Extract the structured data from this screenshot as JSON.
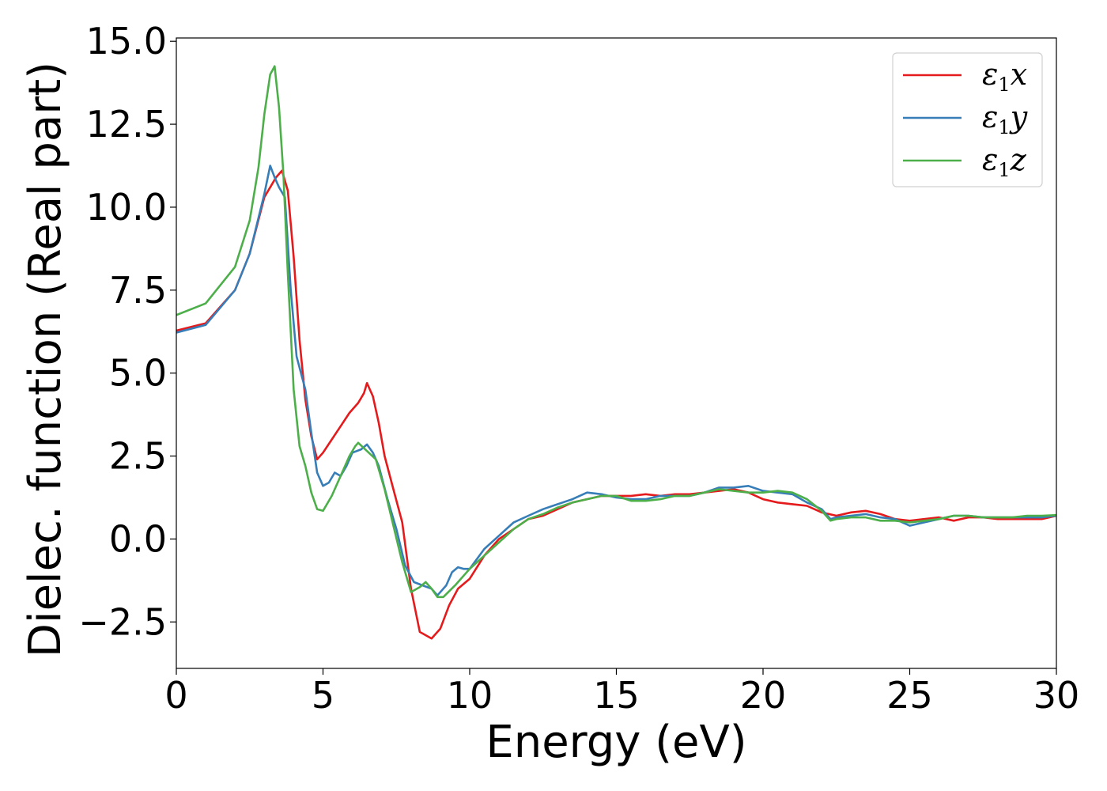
{
  "chart_data": {
    "type": "line",
    "xlabel": "Energy (eV)",
    "ylabel": "Dielec. function (Real part)",
    "xlim": [
      0,
      30
    ],
    "ylim": [
      -3.9,
      15.1
    ],
    "xticks": [
      0,
      5,
      10,
      15,
      20,
      25,
      30
    ],
    "xtick_labels": [
      "0",
      "5",
      "10",
      "15",
      "20",
      "25",
      "30"
    ],
    "yticks": [
      -2.5,
      0.0,
      2.5,
      5.0,
      7.5,
      10.0,
      12.5,
      15.0
    ],
    "ytick_labels": [
      "−2.5",
      "0.0",
      "2.5",
      "5.0",
      "7.5",
      "10.0",
      "12.5",
      "15.0"
    ],
    "grid": false,
    "legend_position": "top-right",
    "series": [
      {
        "name": "ε1x",
        "legend": {
          "base": "ε",
          "sub": "1",
          "tail": "x"
        },
        "color": "#e41a1c",
        "points": [
          [
            0,
            6.28
          ],
          [
            1,
            6.5
          ],
          [
            2,
            7.5
          ],
          [
            2.5,
            8.6
          ],
          [
            3,
            10.3
          ],
          [
            3.2,
            10.6
          ],
          [
            3.4,
            10.9
          ],
          [
            3.6,
            11.1
          ],
          [
            3.8,
            10.5
          ],
          [
            4,
            8.5
          ],
          [
            4.2,
            6.0
          ],
          [
            4.4,
            4.2
          ],
          [
            4.6,
            3.1
          ],
          [
            4.8,
            2.4
          ],
          [
            5,
            2.6
          ],
          [
            5.3,
            3.0
          ],
          [
            5.6,
            3.4
          ],
          [
            5.9,
            3.8
          ],
          [
            6.2,
            4.1
          ],
          [
            6.4,
            4.4
          ],
          [
            6.5,
            4.7
          ],
          [
            6.7,
            4.3
          ],
          [
            6.9,
            3.5
          ],
          [
            7.1,
            2.5
          ],
          [
            7.4,
            1.5
          ],
          [
            7.7,
            0.5
          ],
          [
            8,
            -1.5
          ],
          [
            8.3,
            -2.8
          ],
          [
            8.7,
            -3.0
          ],
          [
            9,
            -2.7
          ],
          [
            9.3,
            -2.0
          ],
          [
            9.6,
            -1.5
          ],
          [
            10,
            -1.2
          ],
          [
            10.5,
            -0.5
          ],
          [
            11,
            0.0
          ],
          [
            11.5,
            0.3
          ],
          [
            12,
            0.6
          ],
          [
            12.5,
            0.7
          ],
          [
            13,
            0.9
          ],
          [
            13.5,
            1.1
          ],
          [
            14,
            1.2
          ],
          [
            14.5,
            1.3
          ],
          [
            15,
            1.3
          ],
          [
            15.5,
            1.3
          ],
          [
            16,
            1.35
          ],
          [
            16.5,
            1.3
          ],
          [
            17,
            1.35
          ],
          [
            17.5,
            1.35
          ],
          [
            18,
            1.4
          ],
          [
            18.5,
            1.45
          ],
          [
            19,
            1.5
          ],
          [
            19.5,
            1.4
          ],
          [
            20,
            1.2
          ],
          [
            20.5,
            1.1
          ],
          [
            21,
            1.05
          ],
          [
            21.5,
            1.0
          ],
          [
            22,
            0.8
          ],
          [
            22.5,
            0.7
          ],
          [
            23,
            0.8
          ],
          [
            23.5,
            0.85
          ],
          [
            24,
            0.75
          ],
          [
            24.5,
            0.6
          ],
          [
            25,
            0.55
          ],
          [
            25.5,
            0.6
          ],
          [
            26,
            0.65
          ],
          [
            26.5,
            0.55
          ],
          [
            27,
            0.65
          ],
          [
            27.5,
            0.65
          ],
          [
            28,
            0.6
          ],
          [
            28.5,
            0.6
          ],
          [
            29,
            0.6
          ],
          [
            29.5,
            0.6
          ],
          [
            30,
            0.7
          ]
        ]
      },
      {
        "name": "ε1y",
        "legend": {
          "base": "ε",
          "sub": "1",
          "tail": "y"
        },
        "color": "#377eb8",
        "points": [
          [
            0,
            6.22
          ],
          [
            1,
            6.45
          ],
          [
            2,
            7.5
          ],
          [
            2.5,
            8.6
          ],
          [
            3,
            10.4
          ],
          [
            3.2,
            11.25
          ],
          [
            3.35,
            10.9
          ],
          [
            3.5,
            10.6
          ],
          [
            3.7,
            10.3
          ],
          [
            3.9,
            7.5
          ],
          [
            4.1,
            5.5
          ],
          [
            4.4,
            4.5
          ],
          [
            4.6,
            3.2
          ],
          [
            4.8,
            2.0
          ],
          [
            5,
            1.6
          ],
          [
            5.2,
            1.7
          ],
          [
            5.4,
            2.0
          ],
          [
            5.6,
            1.9
          ],
          [
            5.8,
            2.2
          ],
          [
            6,
            2.6
          ],
          [
            6.3,
            2.7
          ],
          [
            6.5,
            2.85
          ],
          [
            6.7,
            2.6
          ],
          [
            6.9,
            2.2
          ],
          [
            7.2,
            1.2
          ],
          [
            7.5,
            0.3
          ],
          [
            7.8,
            -0.8
          ],
          [
            8.1,
            -1.3
          ],
          [
            8.4,
            -1.4
          ],
          [
            8.7,
            -1.5
          ],
          [
            8.9,
            -1.7
          ],
          [
            9.2,
            -1.4
          ],
          [
            9.4,
            -1.0
          ],
          [
            9.6,
            -0.85
          ],
          [
            9.8,
            -0.9
          ],
          [
            10,
            -0.9
          ],
          [
            10.5,
            -0.3
          ],
          [
            11,
            0.1
          ],
          [
            11.5,
            0.5
          ],
          [
            12,
            0.7
          ],
          [
            12.5,
            0.9
          ],
          [
            13,
            1.05
          ],
          [
            13.5,
            1.2
          ],
          [
            14,
            1.4
          ],
          [
            14.5,
            1.35
          ],
          [
            15,
            1.25
          ],
          [
            15.5,
            1.2
          ],
          [
            16,
            1.2
          ],
          [
            16.5,
            1.3
          ],
          [
            17,
            1.3
          ],
          [
            17.5,
            1.3
          ],
          [
            18,
            1.4
          ],
          [
            18.5,
            1.55
          ],
          [
            19,
            1.55
          ],
          [
            19.5,
            1.6
          ],
          [
            20,
            1.45
          ],
          [
            20.5,
            1.4
          ],
          [
            21,
            1.35
          ],
          [
            21.5,
            1.1
          ],
          [
            22,
            0.9
          ],
          [
            22.3,
            0.6
          ],
          [
            22.5,
            0.65
          ],
          [
            23,
            0.7
          ],
          [
            23.5,
            0.75
          ],
          [
            24,
            0.65
          ],
          [
            24.5,
            0.6
          ],
          [
            25,
            0.4
          ],
          [
            25.5,
            0.5
          ],
          [
            26,
            0.6
          ],
          [
            26.5,
            0.7
          ],
          [
            27,
            0.7
          ],
          [
            27.5,
            0.65
          ],
          [
            28,
            0.65
          ],
          [
            28.5,
            0.65
          ],
          [
            29,
            0.65
          ],
          [
            29.5,
            0.65
          ],
          [
            30,
            0.7
          ]
        ]
      },
      {
        "name": "ε1z",
        "legend": {
          "base": "ε",
          "sub": "1",
          "tail": "z"
        },
        "color": "#4daf4a",
        "points": [
          [
            0,
            6.75
          ],
          [
            1,
            7.1
          ],
          [
            2,
            8.2
          ],
          [
            2.5,
            9.6
          ],
          [
            2.8,
            11.2
          ],
          [
            3.0,
            12.8
          ],
          [
            3.2,
            14.0
          ],
          [
            3.35,
            14.25
          ],
          [
            3.5,
            13.0
          ],
          [
            3.65,
            11.0
          ],
          [
            3.8,
            8.0
          ],
          [
            4.0,
            4.5
          ],
          [
            4.2,
            2.8
          ],
          [
            4.4,
            2.2
          ],
          [
            4.6,
            1.4
          ],
          [
            4.8,
            0.9
          ],
          [
            5,
            0.85
          ],
          [
            5.3,
            1.3
          ],
          [
            5.6,
            1.9
          ],
          [
            5.9,
            2.5
          ],
          [
            6.1,
            2.8
          ],
          [
            6.2,
            2.9
          ],
          [
            6.5,
            2.65
          ],
          [
            6.8,
            2.4
          ],
          [
            7.1,
            1.5
          ],
          [
            7.4,
            0.4
          ],
          [
            7.7,
            -0.7
          ],
          [
            8,
            -1.6
          ],
          [
            8.3,
            -1.45
          ],
          [
            8.5,
            -1.3
          ],
          [
            8.7,
            -1.5
          ],
          [
            8.9,
            -1.75
          ],
          [
            9.1,
            -1.75
          ],
          [
            9.5,
            -1.4
          ],
          [
            10,
            -0.9
          ],
          [
            10.5,
            -0.5
          ],
          [
            11,
            -0.1
          ],
          [
            11.5,
            0.3
          ],
          [
            12,
            0.6
          ],
          [
            12.5,
            0.75
          ],
          [
            13,
            0.95
          ],
          [
            13.5,
            1.1
          ],
          [
            14,
            1.2
          ],
          [
            14.5,
            1.3
          ],
          [
            15,
            1.3
          ],
          [
            15.5,
            1.15
          ],
          [
            16,
            1.15
          ],
          [
            16.5,
            1.2
          ],
          [
            17,
            1.3
          ],
          [
            17.5,
            1.3
          ],
          [
            18,
            1.4
          ],
          [
            18.5,
            1.5
          ],
          [
            19,
            1.45
          ],
          [
            19.5,
            1.4
          ],
          [
            20,
            1.4
          ],
          [
            20.5,
            1.45
          ],
          [
            21,
            1.4
          ],
          [
            21.5,
            1.2
          ],
          [
            22,
            0.85
          ],
          [
            22.3,
            0.55
          ],
          [
            22.5,
            0.6
          ],
          [
            23,
            0.65
          ],
          [
            23.5,
            0.65
          ],
          [
            24,
            0.55
          ],
          [
            24.5,
            0.55
          ],
          [
            25,
            0.5
          ],
          [
            25.5,
            0.55
          ],
          [
            26,
            0.6
          ],
          [
            26.5,
            0.7
          ],
          [
            27,
            0.7
          ],
          [
            27.5,
            0.65
          ],
          [
            28,
            0.65
          ],
          [
            28.5,
            0.65
          ],
          [
            29,
            0.7
          ],
          [
            29.5,
            0.7
          ],
          [
            30,
            0.72
          ]
        ]
      }
    ]
  }
}
